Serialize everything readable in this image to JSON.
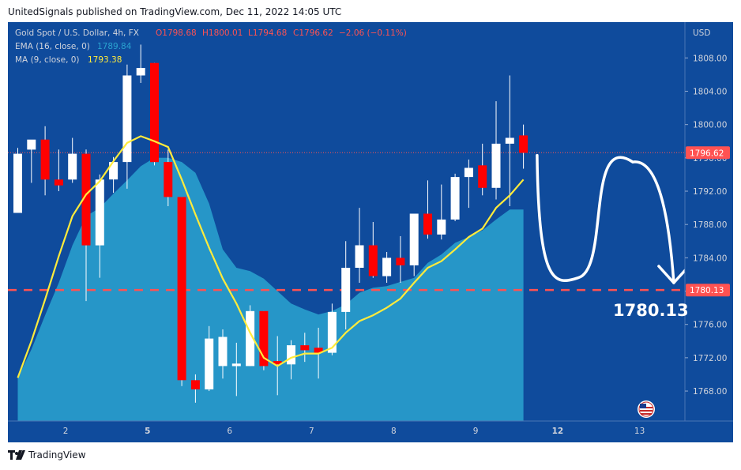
{
  "publisher": "UnitedSignals published on TradingView.com, Dec 11, 2022 14:05 UTC",
  "footer": {
    "brand": "TradingView",
    "logo_icon": "tradingview-logo-icon"
  },
  "legend": {
    "symbol": "Gold Spot / U.S. Dollar, 4h, FX",
    "open": "O1798.68",
    "high": "H1800.01",
    "low": "L1794.68",
    "close": "C1796.62",
    "change": "−2.06 (−0.11%)",
    "ema_label": "EMA (16, close, 0)",
    "ema_value": "1789.84",
    "ma_label": "MA (9, close, 0)",
    "ma_value": "1793.38"
  },
  "currency": "USD",
  "colors": {
    "background": "#0f4b9c",
    "up": "#ffffff",
    "down": "#ff0000",
    "ema_area": "#2aa3d0",
    "ma_line": "#ffeb3b",
    "last_price_badge": "#ff5252",
    "target_line": "#ff5252"
  },
  "last_price_label": "1796.62",
  "target_label": "1780.13",
  "target_big_label": "1780.13",
  "flag_icon": "us-flag-icon",
  "chart_data": {
    "type": "candlestick",
    "title": "Gold Spot / U.S. Dollar, 4h, FX",
    "y_ticks": [
      "1768.00",
      "1772.00",
      "1776.00",
      "1780.00",
      "1784.00",
      "1788.00",
      "1792.00",
      "1796.00",
      "1800.00",
      "1804.00",
      "1808.00"
    ],
    "x_ticks": [
      "2",
      "5",
      "6",
      "7",
      "8",
      "9",
      "12",
      "13"
    ],
    "ylim": [
      1764.4,
      1812.3
    ],
    "candles": [
      {
        "o": 1789.4,
        "h": 1797.2,
        "l": 1789.4,
        "c": 1796.5
      },
      {
        "o": 1797.0,
        "h": 1798.0,
        "l": 1793.0,
        "c": 1798.2
      },
      {
        "o": 1798.2,
        "h": 1799.8,
        "l": 1791.5,
        "c": 1793.4
      },
      {
        "o": 1793.4,
        "h": 1797.0,
        "l": 1792.0,
        "c": 1792.7
      },
      {
        "o": 1793.4,
        "h": 1798.4,
        "l": 1793.0,
        "c": 1796.5
      },
      {
        "o": 1796.5,
        "h": 1797.0,
        "l": 1778.8,
        "c": 1785.5
      },
      {
        "o": 1785.5,
        "h": 1794.0,
        "l": 1781.6,
        "c": 1793.4
      },
      {
        "o": 1793.4,
        "h": 1796.1,
        "l": 1791.8,
        "c": 1795.5
      },
      {
        "o": 1795.5,
        "h": 1807.2,
        "l": 1792.3,
        "c": 1805.9
      },
      {
        "o": 1805.9,
        "h": 1809.6,
        "l": 1805.0,
        "c": 1806.8
      },
      {
        "o": 1807.4,
        "h": 1807.4,
        "l": 1795.1,
        "c": 1795.5
      },
      {
        "o": 1795.5,
        "h": 1797.0,
        "l": 1790.2,
        "c": 1791.3
      },
      {
        "o": 1791.3,
        "h": 1791.3,
        "l": 1768.6,
        "c": 1769.3
      },
      {
        "o": 1769.3,
        "h": 1770.0,
        "l": 1766.6,
        "c": 1768.2
      },
      {
        "o": 1768.2,
        "h": 1775.8,
        "l": 1768.0,
        "c": 1774.3
      },
      {
        "o": 1771.0,
        "h": 1775.4,
        "l": 1769.5,
        "c": 1774.5
      },
      {
        "o": 1771.0,
        "h": 1773.8,
        "l": 1767.4,
        "c": 1771.3
      },
      {
        "o": 1771.0,
        "h": 1778.3,
        "l": 1771.0,
        "c": 1777.6
      },
      {
        "o": 1777.6,
        "h": 1777.6,
        "l": 1770.5,
        "c": 1771.0
      },
      {
        "o": 1771.6,
        "h": 1774.6,
        "l": 1767.5,
        "c": 1771.2
      },
      {
        "o": 1771.2,
        "h": 1774.1,
        "l": 1769.4,
        "c": 1773.5
      },
      {
        "o": 1773.5,
        "h": 1775.0,
        "l": 1771.5,
        "c": 1772.9
      },
      {
        "o": 1773.2,
        "h": 1775.6,
        "l": 1769.5,
        "c": 1772.6
      },
      {
        "o": 1772.6,
        "h": 1778.5,
        "l": 1772.3,
        "c": 1777.5
      },
      {
        "o": 1777.5,
        "h": 1786.0,
        "l": 1775.4,
        "c": 1782.8
      },
      {
        "o": 1782.8,
        "h": 1790.0,
        "l": 1781.0,
        "c": 1785.5
      },
      {
        "o": 1785.5,
        "h": 1788.3,
        "l": 1781.6,
        "c": 1781.8
      },
      {
        "o": 1781.8,
        "h": 1784.7,
        "l": 1781.0,
        "c": 1784.0
      },
      {
        "o": 1784.0,
        "h": 1786.6,
        "l": 1781.0,
        "c": 1783.1
      },
      {
        "o": 1783.1,
        "h": 1789.0,
        "l": 1781.8,
        "c": 1789.3
      },
      {
        "o": 1789.3,
        "h": 1793.3,
        "l": 1786.3,
        "c": 1786.8
      },
      {
        "o": 1786.8,
        "h": 1792.8,
        "l": 1786.2,
        "c": 1788.6
      },
      {
        "o": 1788.6,
        "h": 1794.1,
        "l": 1788.4,
        "c": 1793.7
      },
      {
        "o": 1793.7,
        "h": 1795.8,
        "l": 1790.0,
        "c": 1794.8
      },
      {
        "o": 1795.1,
        "h": 1797.7,
        "l": 1791.5,
        "c": 1792.4
      },
      {
        "o": 1792.4,
        "h": 1802.8,
        "l": 1791.0,
        "c": 1797.7
      },
      {
        "o": 1797.7,
        "h": 1805.9,
        "l": 1790.2,
        "c": 1798.4
      },
      {
        "o": 1798.7,
        "h": 1800.0,
        "l": 1794.7,
        "c": 1796.6
      }
    ],
    "ema_16": [
      1769.6,
      1773.0,
      1777.1,
      1781.0,
      1785.5,
      1789.0,
      1790.0,
      1791.7,
      1793.3,
      1795.0,
      1796.0,
      1796.0,
      1795.5,
      1794.2,
      1790.5,
      1785.0,
      1782.8,
      1782.4,
      1781.5,
      1780.0,
      1778.5,
      1777.8,
      1777.2,
      1777.6,
      1778.4,
      1779.8,
      1780.4,
      1780.6,
      1781.1,
      1781.6,
      1783.4,
      1784.4,
      1785.8,
      1786.5,
      1787.3,
      1788.6,
      1789.8,
      1789.8
    ],
    "ma_9": [
      1769.6,
      1774.0,
      1779.0,
      1784.2,
      1789.0,
      1791.6,
      1793.2,
      1795.6,
      1797.8,
      1798.6,
      1798.0,
      1797.3,
      1793.4,
      1789.2,
      1785.2,
      1781.5,
      1778.5,
      1775.0,
      1772.0,
      1771.0,
      1772.0,
      1772.5,
      1772.5,
      1773.2,
      1775.0,
      1776.4,
      1777.1,
      1778.0,
      1779.1,
      1781.0,
      1782.8,
      1783.6,
      1785.0,
      1786.5,
      1787.5,
      1790.0,
      1791.5,
      1793.4
    ]
  },
  "annotations": {
    "last_price": 1796.62,
    "target_price": 1780.13,
    "projection_path": [
      {
        "x": 1,
        "y": 1796.3
      },
      {
        "x": 4,
        "y": 1781.6
      },
      {
        "x": 8,
        "y": 1795.5
      },
      {
        "x": 11,
        "y": 1781.0
      }
    ]
  }
}
